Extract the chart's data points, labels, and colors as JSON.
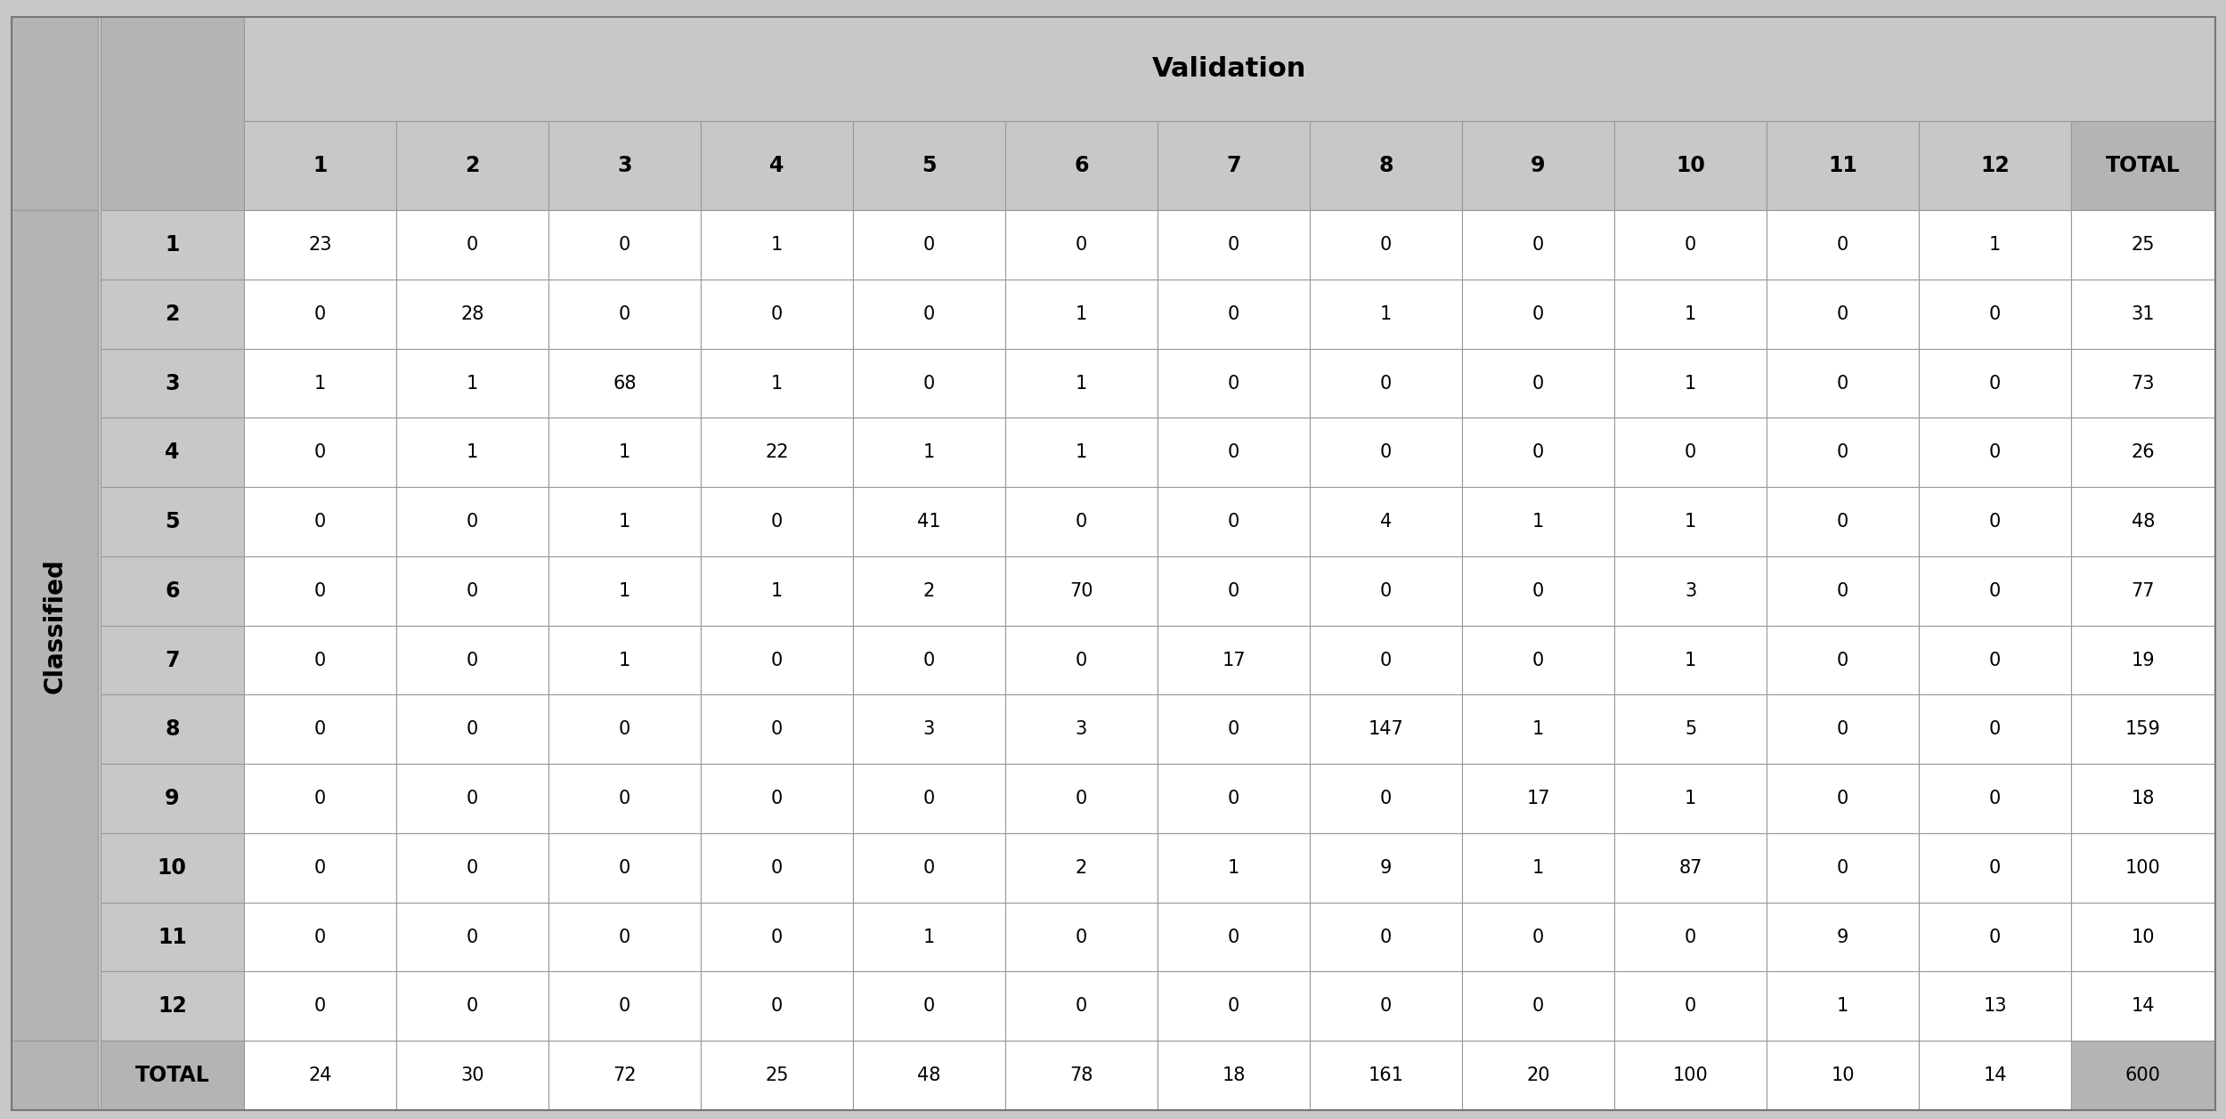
{
  "validation_label": "Validation",
  "classified_label": "Classified",
  "col_headers": [
    "1",
    "2",
    "3",
    "4",
    "5",
    "6",
    "7",
    "8",
    "9",
    "10",
    "11",
    "12",
    "TOTAL"
  ],
  "row_headers": [
    "1",
    "2",
    "3",
    "4",
    "5",
    "6",
    "7",
    "8",
    "9",
    "10",
    "11",
    "12",
    "TOTAL"
  ],
  "data": [
    [
      23,
      0,
      0,
      1,
      0,
      0,
      0,
      0,
      0,
      0,
      0,
      1,
      25
    ],
    [
      0,
      28,
      0,
      0,
      0,
      1,
      0,
      1,
      0,
      1,
      0,
      0,
      31
    ],
    [
      1,
      1,
      68,
      1,
      0,
      1,
      0,
      0,
      0,
      1,
      0,
      0,
      73
    ],
    [
      0,
      1,
      1,
      22,
      1,
      1,
      0,
      0,
      0,
      0,
      0,
      0,
      26
    ],
    [
      0,
      0,
      1,
      0,
      41,
      0,
      0,
      4,
      1,
      1,
      0,
      0,
      48
    ],
    [
      0,
      0,
      1,
      1,
      2,
      70,
      0,
      0,
      0,
      3,
      0,
      0,
      77
    ],
    [
      0,
      0,
      1,
      0,
      0,
      0,
      17,
      0,
      0,
      1,
      0,
      0,
      19
    ],
    [
      0,
      0,
      0,
      0,
      3,
      3,
      0,
      147,
      1,
      5,
      0,
      0,
      159
    ],
    [
      0,
      0,
      0,
      0,
      0,
      0,
      0,
      0,
      17,
      1,
      0,
      0,
      18
    ],
    [
      0,
      0,
      0,
      0,
      0,
      2,
      1,
      9,
      1,
      87,
      0,
      0,
      100
    ],
    [
      0,
      0,
      0,
      0,
      1,
      0,
      0,
      0,
      0,
      0,
      9,
      0,
      10
    ],
    [
      0,
      0,
      0,
      0,
      0,
      0,
      0,
      0,
      0,
      0,
      1,
      13,
      14
    ],
    [
      24,
      30,
      72,
      25,
      48,
      78,
      18,
      161,
      20,
      100,
      10,
      14,
      600
    ]
  ],
  "bg_figure": "#c8c8c8",
  "bg_header_dark": "#b4b4b4",
  "bg_header_mid": "#c8c8c8",
  "bg_white": "#ffffff",
  "bg_total_corner": "#b4b4b4",
  "border_color": "#999999",
  "figsize": [
    25.0,
    12.57
  ],
  "dpi": 100
}
